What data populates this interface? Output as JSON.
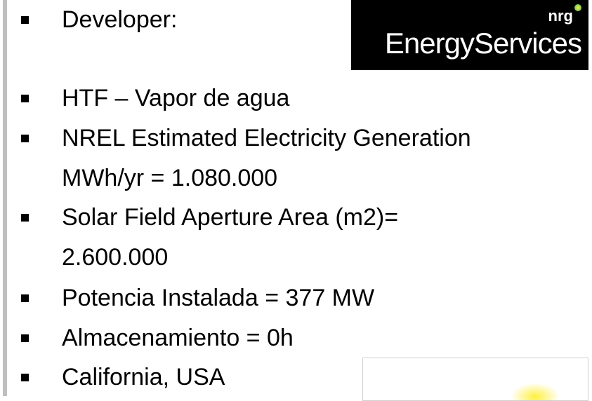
{
  "bullets": [
    [
      "Developer:"
    ],
    [
      "HTF – Vapor de agua"
    ],
    [
      "NREL Estimated Electricity Generation",
      "MWh/yr = 1.080.000"
    ],
    [
      "Solar Field Aperture Area (m2)=",
      "2.600.000"
    ],
    [
      "Potencia Instalada = 377 MW"
    ],
    [
      "Almacenamiento = 0h"
    ],
    [
      "California, USA"
    ]
  ],
  "logo": {
    "brand": "nrg",
    "name": "EnergyServices"
  }
}
